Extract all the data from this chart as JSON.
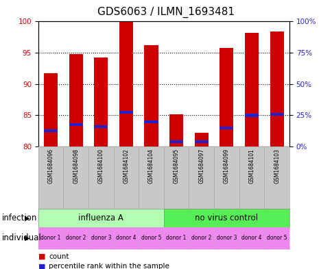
{
  "title": "GDS6063 / ILMN_1693481",
  "samples": [
    "GSM1684096",
    "GSM1684098",
    "GSM1684100",
    "GSM1684102",
    "GSM1684104",
    "GSM1684095",
    "GSM1684097",
    "GSM1684099",
    "GSM1684101",
    "GSM1684103"
  ],
  "red_values": [
    91.7,
    94.8,
    94.3,
    100.0,
    96.2,
    85.2,
    82.2,
    95.8,
    98.2,
    98.4
  ],
  "blue_values": [
    82.5,
    83.5,
    83.2,
    85.5,
    84.0,
    80.8,
    80.8,
    83.0,
    85.0,
    85.2
  ],
  "ymin": 80,
  "ymax": 100,
  "yticks_left": [
    80,
    85,
    90,
    95,
    100
  ],
  "yticks_right": [
    0,
    25,
    50,
    75,
    100
  ],
  "yticks_right_positions": [
    80,
    85,
    90,
    95,
    100
  ],
  "bar_color_red": "#cc0000",
  "bar_color_blue": "#2222cc",
  "bar_width": 0.55,
  "infection_labels": [
    "influenza A",
    "no virus control"
  ],
  "infection_color_a": "#b3ffb3",
  "infection_color_b": "#55ee55",
  "individual_labels": [
    "donor 1",
    "donor 2",
    "donor 3",
    "donor 4",
    "donor 5",
    "donor 1",
    "donor 2",
    "donor 3",
    "donor 4",
    "donor 5"
  ],
  "individual_color": "#ee88ee",
  "sample_box_color": "#c8c8c8",
  "bg_color": "#ffffff",
  "left_label_color": "#cc0000",
  "right_label_color": "#2222cc",
  "title_fontsize": 11,
  "tick_fontsize": 7.5,
  "label_fontsize": 8.5,
  "sample_fontsize": 5.5,
  "legend_fontsize": 7.5
}
